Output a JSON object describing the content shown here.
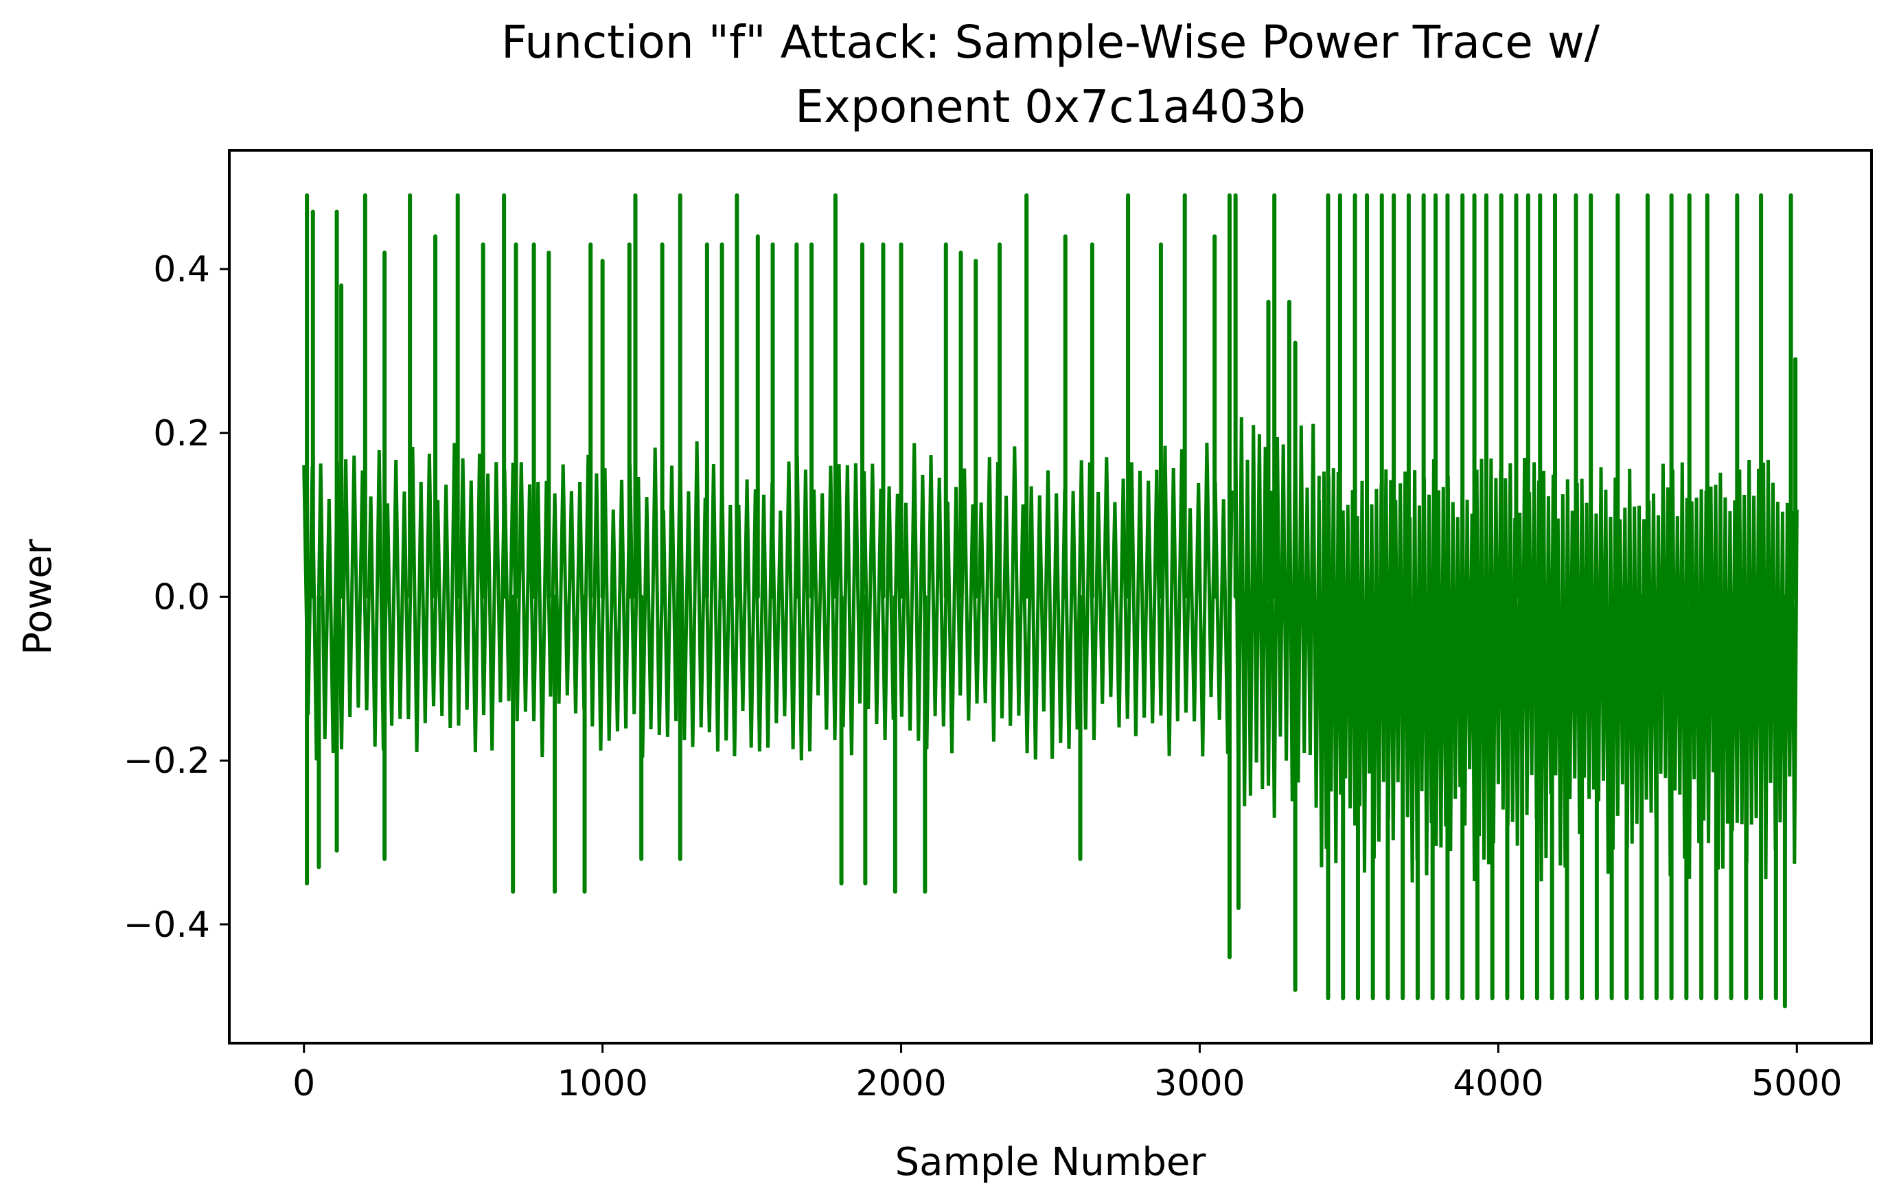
{
  "chart_data": {
    "type": "line",
    "title_lines": [
      "Function \"f\" Attack: Sample-Wise Power Trace w/",
      "Exponent 0x7c1a403b"
    ],
    "xlabel": "Sample Number",
    "ylabel": "Power",
    "xlim": [
      -250,
      5250
    ],
    "ylim": [
      -0.545,
      0.545
    ],
    "x_ticks": [
      0,
      1000,
      2000,
      3000,
      4000,
      5000
    ],
    "x_tick_labels": [
      "0",
      "1000",
      "2000",
      "3000",
      "4000",
      "5000"
    ],
    "y_ticks": [
      0.4,
      0.2,
      0.0,
      -0.2,
      -0.4
    ],
    "y_tick_labels": [
      "0.4",
      "0.2",
      "0.0",
      "−0.2",
      "−0.4"
    ],
    "grid": false,
    "series": [
      {
        "name": "Power trace",
        "color": "#008000",
        "n_samples": 5000,
        "segments": [
          {
            "x_start": 0,
            "x_end": 3120,
            "top": 0.19,
            "bottom": -0.2,
            "period": 28
          },
          {
            "x_start": 3120,
            "x_end": 3400,
            "top": 0.22,
            "bottom": -0.28,
            "period": 20
          },
          {
            "x_start": 3400,
            "x_end": 5000,
            "top": 0.17,
            "bottom": -0.35,
            "period": 16
          }
        ],
        "peaks": [
          {
            "x": 10,
            "y": 0.49
          },
          {
            "x": 30,
            "y": 0.47
          },
          {
            "x": 110,
            "y": 0.47
          },
          {
            "x": 125,
            "y": 0.38
          },
          {
            "x": 205,
            "y": 0.49
          },
          {
            "x": 270,
            "y": 0.42
          },
          {
            "x": 355,
            "y": 0.49
          },
          {
            "x": 440,
            "y": 0.44
          },
          {
            "x": 515,
            "y": 0.49
          },
          {
            "x": 600,
            "y": 0.43
          },
          {
            "x": 670,
            "y": 0.49
          },
          {
            "x": 710,
            "y": 0.43
          },
          {
            "x": 770,
            "y": 0.43
          },
          {
            "x": 820,
            "y": 0.42
          },
          {
            "x": 960,
            "y": 0.43
          },
          {
            "x": 1000,
            "y": 0.41
          },
          {
            "x": 1090,
            "y": 0.43
          },
          {
            "x": 1110,
            "y": 0.49
          },
          {
            "x": 1200,
            "y": 0.43
          },
          {
            "x": 1260,
            "y": 0.49
          },
          {
            "x": 1350,
            "y": 0.43
          },
          {
            "x": 1400,
            "y": 0.43
          },
          {
            "x": 1450,
            "y": 0.49
          },
          {
            "x": 1520,
            "y": 0.44
          },
          {
            "x": 1570,
            "y": 0.43
          },
          {
            "x": 1650,
            "y": 0.43
          },
          {
            "x": 1700,
            "y": 0.43
          },
          {
            "x": 1780,
            "y": 0.49
          },
          {
            "x": 1870,
            "y": 0.43
          },
          {
            "x": 1940,
            "y": 0.43
          },
          {
            "x": 2000,
            "y": 0.43
          },
          {
            "x": 2150,
            "y": 0.43
          },
          {
            "x": 2200,
            "y": 0.42
          },
          {
            "x": 2250,
            "y": 0.41
          },
          {
            "x": 2330,
            "y": 0.43
          },
          {
            "x": 2420,
            "y": 0.49
          },
          {
            "x": 2550,
            "y": 0.44
          },
          {
            "x": 2640,
            "y": 0.43
          },
          {
            "x": 2760,
            "y": 0.49
          },
          {
            "x": 2870,
            "y": 0.43
          },
          {
            "x": 2950,
            "y": 0.49
          },
          {
            "x": 3050,
            "y": 0.44
          },
          {
            "x": 3100,
            "y": 0.49
          },
          {
            "x": 3120,
            "y": 0.49
          },
          {
            "x": 3230,
            "y": 0.36
          },
          {
            "x": 3250,
            "y": 0.49
          },
          {
            "x": 3300,
            "y": 0.36
          },
          {
            "x": 3320,
            "y": 0.31
          },
          {
            "x": 3430,
            "y": 0.49
          },
          {
            "x": 3470,
            "y": 0.49
          },
          {
            "x": 3520,
            "y": 0.49
          },
          {
            "x": 3560,
            "y": 0.49
          },
          {
            "x": 3610,
            "y": 0.49
          },
          {
            "x": 3650,
            "y": 0.49
          },
          {
            "x": 3700,
            "y": 0.49
          },
          {
            "x": 3750,
            "y": 0.49
          },
          {
            "x": 3790,
            "y": 0.49
          },
          {
            "x": 3830,
            "y": 0.49
          },
          {
            "x": 3880,
            "y": 0.49
          },
          {
            "x": 3920,
            "y": 0.49
          },
          {
            "x": 3960,
            "y": 0.49
          },
          {
            "x": 4010,
            "y": 0.49
          },
          {
            "x": 4060,
            "y": 0.49
          },
          {
            "x": 4100,
            "y": 0.49
          },
          {
            "x": 4140,
            "y": 0.49
          },
          {
            "x": 4190,
            "y": 0.49
          },
          {
            "x": 4260,
            "y": 0.49
          },
          {
            "x": 4310,
            "y": 0.49
          },
          {
            "x": 4400,
            "y": 0.49
          },
          {
            "x": 4500,
            "y": 0.49
          },
          {
            "x": 4580,
            "y": 0.49
          },
          {
            "x": 4640,
            "y": 0.49
          },
          {
            "x": 4700,
            "y": 0.49
          },
          {
            "x": 4800,
            "y": 0.49
          },
          {
            "x": 4880,
            "y": 0.49
          },
          {
            "x": 4980,
            "y": 0.49
          },
          {
            "x": 4995,
            "y": 0.29
          }
        ],
        "troughs": [
          {
            "x": 10,
            "y": -0.35
          },
          {
            "x": 50,
            "y": -0.33
          },
          {
            "x": 110,
            "y": -0.31
          },
          {
            "x": 270,
            "y": -0.32
          },
          {
            "x": 700,
            "y": -0.36
          },
          {
            "x": 840,
            "y": -0.36
          },
          {
            "x": 940,
            "y": -0.36
          },
          {
            "x": 1130,
            "y": -0.32
          },
          {
            "x": 1260,
            "y": -0.32
          },
          {
            "x": 1800,
            "y": -0.35
          },
          {
            "x": 1880,
            "y": -0.35
          },
          {
            "x": 1980,
            "y": -0.36
          },
          {
            "x": 2080,
            "y": -0.36
          },
          {
            "x": 2600,
            "y": -0.32
          },
          {
            "x": 3100,
            "y": -0.44
          },
          {
            "x": 3130,
            "y": -0.38
          },
          {
            "x": 3320,
            "y": -0.48
          },
          {
            "x": 3430,
            "y": -0.49
          },
          {
            "x": 3480,
            "y": -0.49
          },
          {
            "x": 3530,
            "y": -0.49
          },
          {
            "x": 3580,
            "y": -0.49
          },
          {
            "x": 3630,
            "y": -0.49
          },
          {
            "x": 3680,
            "y": -0.49
          },
          {
            "x": 3730,
            "y": -0.49
          },
          {
            "x": 3780,
            "y": -0.49
          },
          {
            "x": 3830,
            "y": -0.49
          },
          {
            "x": 3880,
            "y": -0.49
          },
          {
            "x": 3930,
            "y": -0.49
          },
          {
            "x": 3980,
            "y": -0.49
          },
          {
            "x": 4030,
            "y": -0.49
          },
          {
            "x": 4080,
            "y": -0.49
          },
          {
            "x": 4130,
            "y": -0.49
          },
          {
            "x": 4180,
            "y": -0.49
          },
          {
            "x": 4230,
            "y": -0.49
          },
          {
            "x": 4280,
            "y": -0.49
          },
          {
            "x": 4330,
            "y": -0.49
          },
          {
            "x": 4380,
            "y": -0.49
          },
          {
            "x": 4430,
            "y": -0.49
          },
          {
            "x": 4480,
            "y": -0.49
          },
          {
            "x": 4530,
            "y": -0.49
          },
          {
            "x": 4580,
            "y": -0.49
          },
          {
            "x": 4630,
            "y": -0.49
          },
          {
            "x": 4680,
            "y": -0.49
          },
          {
            "x": 4730,
            "y": -0.49
          },
          {
            "x": 4780,
            "y": -0.49
          },
          {
            "x": 4830,
            "y": -0.49
          },
          {
            "x": 4880,
            "y": -0.49
          },
          {
            "x": 4930,
            "y": -0.49
          },
          {
            "x": 4960,
            "y": -0.5
          }
        ]
      }
    ]
  }
}
